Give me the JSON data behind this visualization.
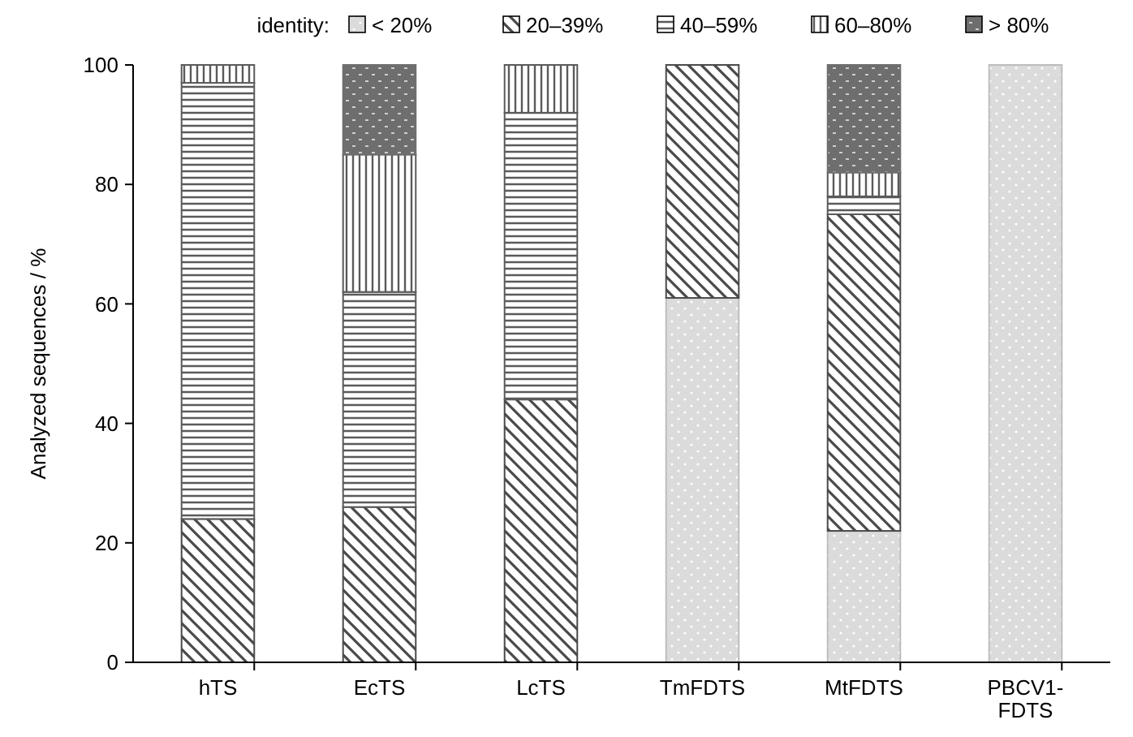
{
  "chart_data": {
    "type": "bar",
    "stacked": true,
    "ylabel": "Analyzed sequences / %",
    "legend_title": "identity:",
    "legend": "top",
    "categories": [
      "hTS",
      "EcTS",
      "LcTS",
      "TmFDTS",
      "MtFDTS",
      "PBCV1-FDTS"
    ],
    "series": [
      {
        "name": "< 20%",
        "color": "#bdbdbd",
        "values": [
          0,
          0,
          0,
          61,
          22,
          100
        ]
      },
      {
        "name": "20–39%",
        "color": "#4a4a4a",
        "values": [
          24,
          26,
          44,
          39,
          53,
          0
        ]
      },
      {
        "name": "40–59%",
        "color": "#5a5a5a",
        "values": [
          73,
          36,
          48,
          0,
          3,
          0
        ]
      },
      {
        "name": "60–80%",
        "color": "#5a5a5a",
        "values": [
          3,
          23,
          8,
          0,
          4,
          0
        ]
      },
      {
        "name": "> 80%",
        "color": "#6e6e6e",
        "values": [
          0,
          15,
          0,
          0,
          18,
          0
        ]
      }
    ],
    "ylim": [
      0,
      100
    ],
    "yticks": [
      0,
      20,
      40,
      60,
      80,
      100
    ]
  }
}
